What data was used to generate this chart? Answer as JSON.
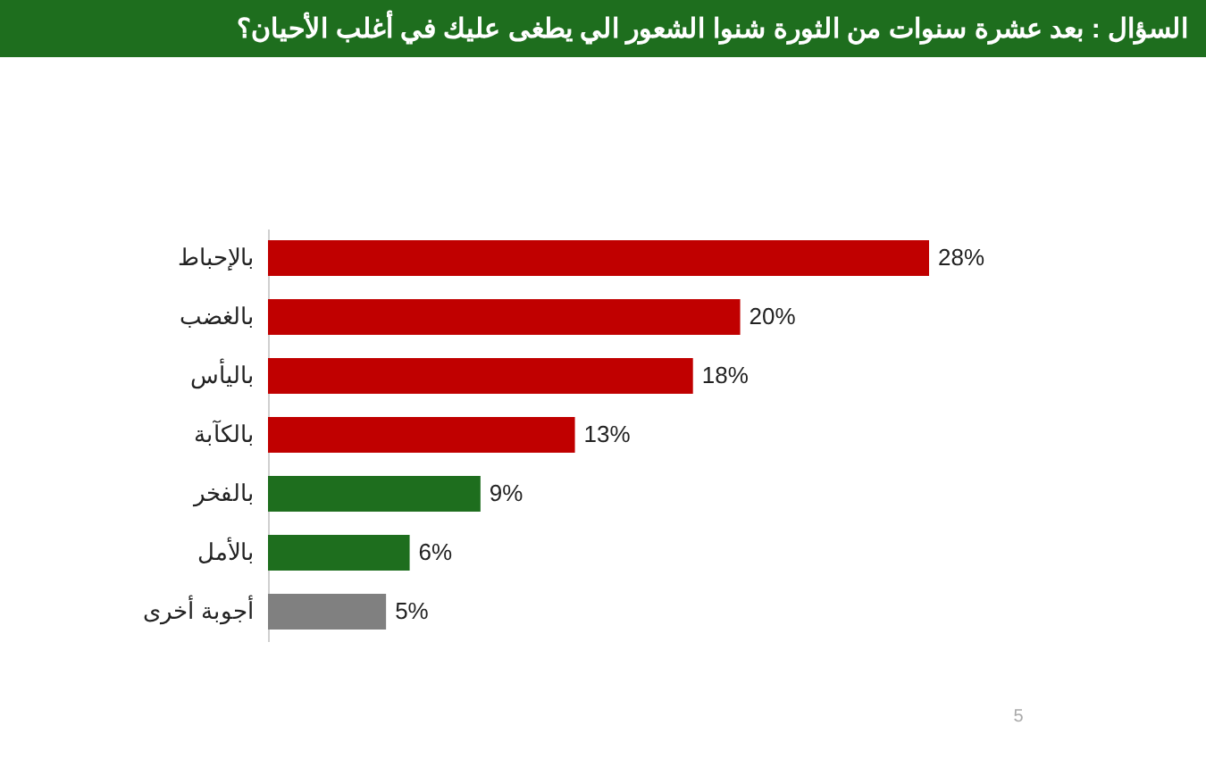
{
  "chart_data": {
    "type": "bar",
    "orientation": "horizontal",
    "title": "السؤال : بعد عشرة سنوات من الثورة شنوا الشعور الي يطغى عليك في أغلب الأحيان؟",
    "categories": [
      "بالإحباط",
      "بالغضب",
      "باليأس",
      "بالكآبة",
      "بالفخر",
      "بالأمل",
      "أجوبة أخرى"
    ],
    "values": [
      28,
      20,
      18,
      13,
      9,
      6,
      5
    ],
    "colors": [
      "#c00000",
      "#c00000",
      "#c00000",
      "#c00000",
      "#1e6e1e",
      "#1e6e1e",
      "#808080"
    ],
    "value_labels": [
      "28%",
      "20%",
      "18%",
      "13%",
      "9%",
      "6%",
      "5%"
    ],
    "annotations": [
      "5"
    ],
    "grid": false
  }
}
